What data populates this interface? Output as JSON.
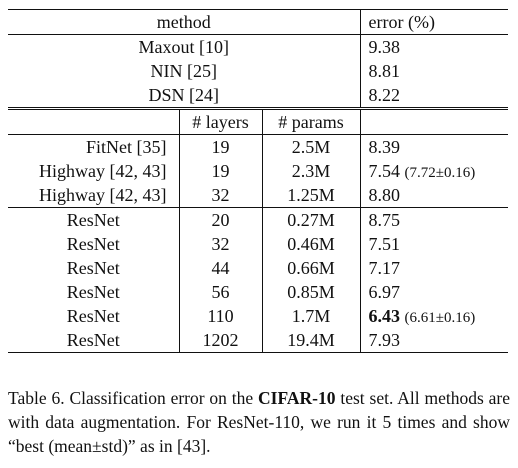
{
  "table": {
    "header": {
      "method": "method",
      "error": "error (%)"
    },
    "group1": [
      {
        "method": "Maxout [10]",
        "error": "9.38"
      },
      {
        "method": "NIN [25]",
        "error": "8.81"
      },
      {
        "method": "DSN [24]",
        "error": "8.22"
      }
    ],
    "subheader": {
      "layers": "# layers",
      "params": "# params"
    },
    "group2": [
      {
        "method": "FitNet [35]",
        "layers": "19",
        "params": "2.5M",
        "error": "8.39",
        "extra": ""
      },
      {
        "method": "Highway [42, 43]",
        "layers": "19",
        "params": "2.3M",
        "error": "7.54",
        "extra": "(7.72±0.16)"
      },
      {
        "method": "Highway [42, 43]",
        "layers": "32",
        "params": "1.25M",
        "error": "8.80",
        "extra": ""
      }
    ],
    "group3": [
      {
        "method": "ResNet",
        "layers": "20",
        "params": "0.27M",
        "error": "8.75",
        "extra": ""
      },
      {
        "method": "ResNet",
        "layers": "32",
        "params": "0.46M",
        "error": "7.51",
        "extra": ""
      },
      {
        "method": "ResNet",
        "layers": "44",
        "params": "0.66M",
        "error": "7.17",
        "extra": ""
      },
      {
        "method": "ResNet",
        "layers": "56",
        "params": "0.85M",
        "error": "6.97",
        "extra": ""
      },
      {
        "method": "ResNet",
        "layers": "110",
        "params": "1.7M",
        "error": "6.43",
        "extra": "(6.61±0.16)"
      },
      {
        "method": "ResNet",
        "layers": "1202",
        "params": "19.4M",
        "error": "7.93",
        "extra": ""
      }
    ]
  },
  "caption": {
    "label": "Table 6.",
    "text_before": " Classification error on the ",
    "dataset": "CIFAR-10",
    "text_after": " test set. All methods are with data augmentation. For ResNet-110, we run it 5 times and show “best (mean±std)” as in [43]."
  }
}
